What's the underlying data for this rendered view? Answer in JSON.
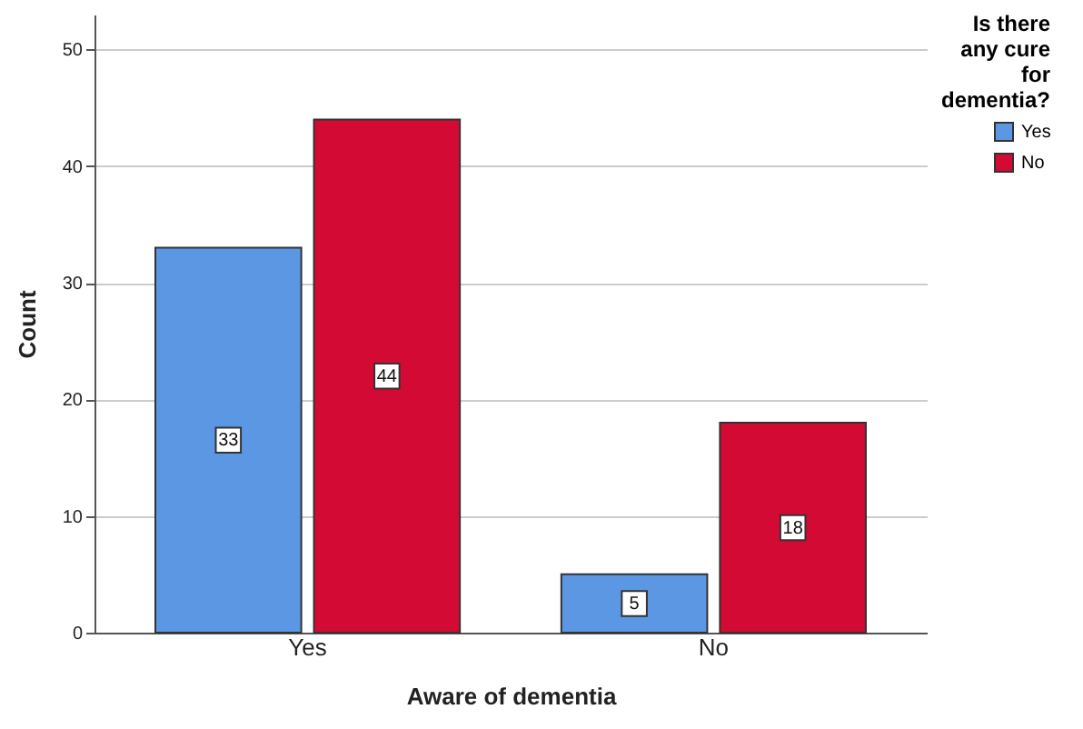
{
  "chart_data": {
    "type": "bar",
    "xlabel": "Aware of dementia",
    "ylabel": "Count",
    "legend_title": "Is there any cure for dementia?",
    "categories": [
      "Yes",
      "No"
    ],
    "series": [
      {
        "name": "Yes",
        "color": "#5b97e3",
        "values": [
          33,
          5
        ]
      },
      {
        "name": "No",
        "color": "#d20a34",
        "values": [
          44,
          18
        ]
      }
    ],
    "ylim": [
      0,
      53
    ],
    "yticks": [
      0,
      10,
      20,
      30,
      40,
      50
    ],
    "grid": "y",
    "legend": "top right",
    "data_labels": true
  }
}
